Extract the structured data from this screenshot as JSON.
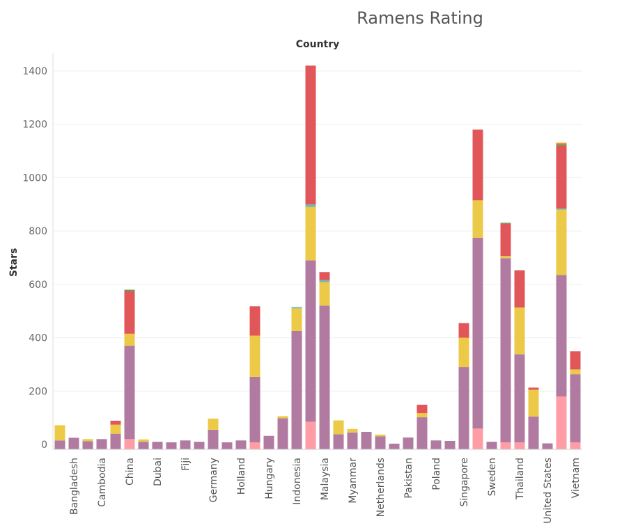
{
  "chart_data": {
    "type": "bar",
    "stacked": true,
    "title": "Ramens Rating",
    "column_header": "Country",
    "ylabel": "Stars",
    "ylim": [
      0,
      1420
    ],
    "yticks": [
      0,
      200,
      400,
      600,
      800,
      1000,
      1200,
      1400
    ],
    "grid": true,
    "categories": [
      "",
      "Bangladesh",
      "",
      "Cambodia",
      "",
      "China",
      "",
      "Dubai",
      "",
      "Fiji",
      "",
      "Germany",
      "",
      "Holland",
      "",
      "Hungary",
      "",
      "Indonesia",
      "",
      "Malaysia",
      "",
      "Myanmar",
      "",
      "Netherlands",
      "",
      "Pakistan",
      "",
      "Poland",
      "",
      "Singapore",
      "",
      "Sweden",
      "",
      "Thailand",
      "",
      "United States",
      "",
      "Vietnam"
    ],
    "series": [
      {
        "color": "#ff9da7",
        "values": [
          0,
          0,
          0,
          0,
          0,
          20,
          0,
          0,
          0,
          0,
          0,
          0,
          0,
          0,
          8,
          0,
          0,
          0,
          85,
          0,
          0,
          0,
          0,
          0,
          0,
          0,
          0,
          0,
          0,
          0,
          60,
          0,
          8,
          8,
          0,
          0,
          180,
          8
        ]
      },
      {
        "color": "#b07aa1",
        "values": [
          15,
          25,
          12,
          20,
          40,
          350,
          10,
          10,
          8,
          15,
          10,
          55,
          8,
          15,
          245,
          32,
          98,
          425,
          605,
          520,
          38,
          45,
          47,
          30,
          3,
          26,
          102,
          15,
          13,
          290,
          715,
          10,
          690,
          330,
          105,
          4,
          455,
          255
        ]
      },
      {
        "color": "#edc948",
        "values": [
          57,
          0,
          8,
          0,
          34,
          45,
          9,
          0,
          0,
          0,
          0,
          42,
          0,
          0,
          155,
          0,
          8,
          85,
          200,
          88,
          52,
          13,
          0,
          7,
          0,
          0,
          15,
          0,
          0,
          110,
          140,
          0,
          8,
          175,
          100,
          0,
          245,
          18
        ]
      },
      {
        "color": "#76b7b2",
        "values": [
          0,
          0,
          0,
          0,
          0,
          0,
          0,
          0,
          0,
          0,
          0,
          0,
          0,
          0,
          0,
          0,
          0,
          5,
          10,
          8,
          0,
          0,
          0,
          0,
          0,
          0,
          0,
          0,
          0,
          0,
          0,
          0,
          0,
          0,
          0,
          0,
          5,
          0
        ]
      },
      {
        "color": "#e15759",
        "values": [
          0,
          0,
          0,
          0,
          15,
          160,
          0,
          0,
          0,
          0,
          0,
          0,
          0,
          0,
          110,
          0,
          0,
          0,
          520,
          30,
          0,
          0,
          0,
          0,
          0,
          0,
          32,
          0,
          0,
          55,
          265,
          0,
          122,
          140,
          8,
          0,
          235,
          68
        ]
      },
      {
        "color": "#59a14f",
        "values": [
          0,
          0,
          0,
          0,
          0,
          5,
          0,
          0,
          0,
          0,
          0,
          0,
          0,
          0,
          0,
          0,
          0,
          0,
          0,
          0,
          0,
          0,
          0,
          0,
          0,
          0,
          0,
          0,
          0,
          0,
          0,
          0,
          3,
          0,
          0,
          0,
          5,
          0
        ]
      },
      {
        "color": "#f28e2b",
        "values": [
          0,
          0,
          0,
          0,
          0,
          0,
          0,
          0,
          0,
          0,
          0,
          0,
          0,
          0,
          0,
          0,
          0,
          0,
          0,
          0,
          0,
          0,
          0,
          0,
          0,
          0,
          0,
          0,
          0,
          0,
          0,
          0,
          0,
          0,
          0,
          0,
          6,
          0
        ]
      }
    ]
  }
}
